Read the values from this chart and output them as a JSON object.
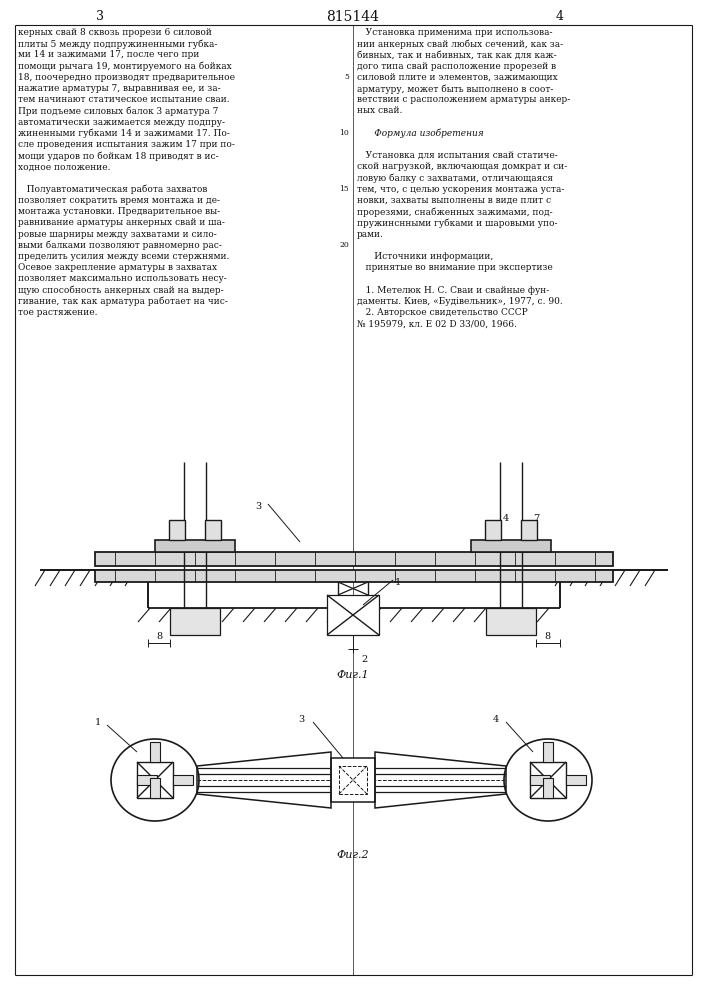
{
  "title": "815144",
  "bg": "#ffffff",
  "lc": "#1a1a1a",
  "tc": "#111111",
  "fig1_caption": "Фиг.1",
  "fig2_caption": "Фиг.2",
  "pn_left": "3",
  "pn_right": "4",
  "col1": [
    "керных свай 8 сквозь прорези 6 силовой",
    "плиты 5 между подпружиненными губка-",
    "ми 14 и зажимами 17, после чего при",
    "помощи рычага 19, монтируемого на бойках",
    "18, поочередно производят предварительное",
    "нажатие арматуры 7, выравнивая ее, и за-",
    "тем начинают статическое испытание сваи.",
    "При подъеме силовых балок 3 арматура 7",
    "автоматически зажимается между подпру-",
    "жиненными губками 14 и зажимами 17. По-",
    "сле проведения испытания зажим 17 при по-",
    "мощи ударов по бойкам 18 приводят в ис-",
    "ходное положение.",
    "",
    "   Полуавтоматическая работа захватов",
    "позволяет сократить время монтажа и де-",
    "монтажа установки. Предварительное вы-",
    "равнивание арматуры анкерных свай и ша-",
    "ровые шарниры между захватами и сило-",
    "выми балками позволяют равномерно рас-",
    "пределить усилия между всеми стержнями.",
    "Осевое закрепление арматуры в захватах",
    "позволяет максимально использовать несу-",
    "щую способность анкерных свай на выдер-",
    "гивание, так как арматура работает на чис-",
    "тое растяжение."
  ],
  "col2": [
    "   Установка применима при использова-",
    "нии анкерных свай любых сечений, как за-",
    "бивных, так и набивных, так как для каж-",
    "дого типа свай расположение прорезей в",
    "силовой плите и элементов, зажимающих",
    "арматуру, может быть выполнено в соот-",
    "ветствии с расположением арматуры анкер-",
    "ных свай.",
    "",
    "      Формула изобретения",
    "",
    "   Установка для испытания свай статиче-",
    "ской нагрузкой, включающая домкрат и си-",
    "ловую балку с захватами, отличающаяся",
    "тем, что, с целью ускорения монтажа уста-",
    "новки, захваты выполнены в виде плит с",
    "прорезями, снабженных зажимами, под-",
    "пружинснными губками и шаровыми упо-",
    "рами.",
    "",
    "      Источники информации,",
    "   принятые во внимание при экспертизе",
    "",
    "   1. Метелюк Н. С. Сваи и свайные фун-",
    "даменты. Киев, «Будівельник», 1977, с. 90.",
    "   2. Авторское свидетельство СССР",
    "№ 195979, кл. Е 02 D 33/00, 1966."
  ]
}
